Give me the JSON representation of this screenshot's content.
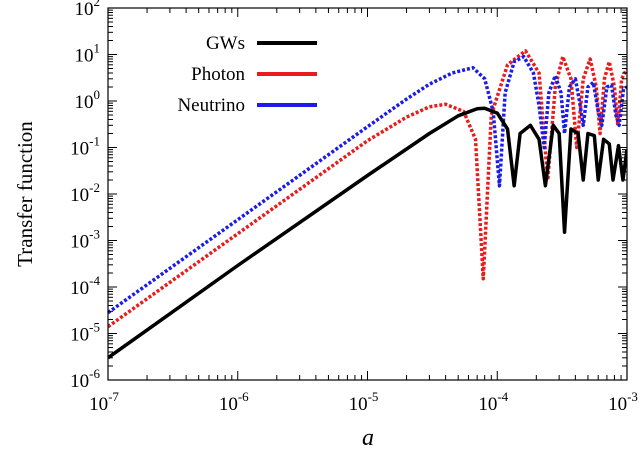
{
  "chart_data": {
    "type": "line",
    "xlabel": "a",
    "ylabel": "Transfer function",
    "x_scale": "log",
    "y_scale": "log",
    "xlim": [
      1e-07,
      0.001
    ],
    "ylim": [
      1e-06,
      100
    ],
    "x_ticks": [
      {
        "value": 1e-07,
        "base": "10",
        "exp": "-7"
      },
      {
        "value": 1e-06,
        "base": "10",
        "exp": "-6"
      },
      {
        "value": 1e-05,
        "base": "10",
        "exp": "-5"
      },
      {
        "value": 0.0001,
        "base": "10",
        "exp": "-4"
      },
      {
        "value": 0.001,
        "base": "10",
        "exp": "-3"
      }
    ],
    "y_ticks": [
      {
        "value": 1e-06,
        "base": "10",
        "exp": "-6"
      },
      {
        "value": 1e-05,
        "base": "10",
        "exp": "-5"
      },
      {
        "value": 0.0001,
        "base": "10",
        "exp": "-4"
      },
      {
        "value": 0.001,
        "base": "10",
        "exp": "-3"
      },
      {
        "value": 0.01,
        "base": "10",
        "exp": "-2"
      },
      {
        "value": 0.1,
        "base": "10",
        "exp": "-1"
      },
      {
        "value": 1,
        "base": "10",
        "exp": "0"
      },
      {
        "value": 10,
        "base": "10",
        "exp": "1"
      },
      {
        "value": 100,
        "base": "10",
        "exp": "2"
      }
    ],
    "grid": false,
    "legend_position": "top-left",
    "note": "solid segments = positive values, dotted segments = negative values (absolute value plotted)",
    "series": [
      {
        "name": "GWs",
        "color": "#000000",
        "points": [
          {
            "x": 1e-07,
            "y": 3e-06
          },
          {
            "x": 1e-06,
            "y": 0.00029
          },
          {
            "x": 1e-05,
            "y": 0.025
          },
          {
            "x": 3e-05,
            "y": 0.2
          },
          {
            "x": 5e-05,
            "y": 0.48
          },
          {
            "x": 7e-05,
            "y": 0.68
          },
          {
            "x": 8e-05,
            "y": 0.7
          },
          {
            "x": 0.0001,
            "y": 0.55
          },
          {
            "x": 0.00012,
            "y": 0.25
          },
          {
            "x": 0.000135,
            "y": 0.015
          },
          {
            "x": 0.00015,
            "y": 0.2
          },
          {
            "x": 0.00018,
            "y": 0.3
          },
          {
            "x": 0.00021,
            "y": 0.15
          },
          {
            "x": 0.000235,
            "y": 0.015
          },
          {
            "x": 0.00027,
            "y": 0.3
          },
          {
            "x": 0.0003,
            "y": 0.2
          },
          {
            "x": 0.00033,
            "y": 0.0015
          },
          {
            "x": 0.00037,
            "y": 0.25
          },
          {
            "x": 0.00042,
            "y": 0.2
          },
          {
            "x": 0.00046,
            "y": 0.02
          },
          {
            "x": 0.0005,
            "y": 0.2
          },
          {
            "x": 0.00056,
            "y": 0.18
          },
          {
            "x": 0.0006,
            "y": 0.02
          },
          {
            "x": 0.00066,
            "y": 0.15
          },
          {
            "x": 0.00073,
            "y": 0.12
          },
          {
            "x": 0.00078,
            "y": 0.02
          },
          {
            "x": 0.00086,
            "y": 0.11
          },
          {
            "x": 0.00093,
            "y": 0.02
          },
          {
            "x": 0.001,
            "y": 0.09
          }
        ]
      },
      {
        "name": "Photon",
        "color": "#e81c1c",
        "points": [
          {
            "x": 1e-07,
            "y": 1.4e-05
          },
          {
            "x": 1e-06,
            "y": 0.0014
          },
          {
            "x": 1e-05,
            "y": 0.14
          },
          {
            "x": 2e-05,
            "y": 0.45
          },
          {
            "x": 3e-05,
            "y": 0.75
          },
          {
            "x": 4e-05,
            "y": 0.85
          },
          {
            "x": 5.5e-05,
            "y": 0.6
          },
          {
            "x": 6.8e-05,
            "y": 0.15
          },
          {
            "x": 7.8e-05,
            "y": 0.00015
          },
          {
            "x": 9e-05,
            "y": 0.5
          },
          {
            "x": 0.00012,
            "y": 6
          },
          {
            "x": 0.000165,
            "y": 12
          },
          {
            "x": 0.00021,
            "y": 4
          },
          {
            "x": 0.000245,
            "y": 0.02
          },
          {
            "x": 0.00028,
            "y": 2
          },
          {
            "x": 0.00032,
            "y": 9
          },
          {
            "x": 0.00037,
            "y": 3
          },
          {
            "x": 0.00041,
            "y": 0.1
          },
          {
            "x": 0.00046,
            "y": 3
          },
          {
            "x": 0.00052,
            "y": 8
          },
          {
            "x": 0.00058,
            "y": 2
          },
          {
            "x": 0.00062,
            "y": 0.2
          },
          {
            "x": 0.00067,
            "y": 3
          },
          {
            "x": 0.00073,
            "y": 7
          },
          {
            "x": 0.0008,
            "y": 2
          },
          {
            "x": 0.00085,
            "y": 0.3
          },
          {
            "x": 0.00091,
            "y": 3
          },
          {
            "x": 0.001,
            "y": 5
          }
        ]
      },
      {
        "name": "Neutrino",
        "color": "#1c1ce8",
        "points": [
          {
            "x": 1e-07,
            "y": 2.8e-05
          },
          {
            "x": 1e-06,
            "y": 0.0028
          },
          {
            "x": 1e-05,
            "y": 0.28
          },
          {
            "x": 2e-05,
            "y": 1.1
          },
          {
            "x": 3e-05,
            "y": 2.3
          },
          {
            "x": 4.5e-05,
            "y": 4
          },
          {
            "x": 6.5e-05,
            "y": 5.2
          },
          {
            "x": 8e-05,
            "y": 3
          },
          {
            "x": 9.3e-05,
            "y": 0.6
          },
          {
            "x": 0.000104,
            "y": 0.015
          },
          {
            "x": 0.000115,
            "y": 1.5
          },
          {
            "x": 0.000135,
            "y": 7
          },
          {
            "x": 0.00016,
            "y": 9
          },
          {
            "x": 0.00019,
            "y": 4
          },
          {
            "x": 0.00021,
            "y": 0.8
          },
          {
            "x": 0.00023,
            "y": 0.1
          },
          {
            "x": 0.00025,
            "y": 1.5
          },
          {
            "x": 0.00028,
            "y": 3.5
          },
          {
            "x": 0.00031,
            "y": 1.5
          },
          {
            "x": 0.00033,
            "y": 0.2
          },
          {
            "x": 0.00036,
            "y": 2
          },
          {
            "x": 0.0004,
            "y": 3
          },
          {
            "x": 0.00043,
            "y": 1
          },
          {
            "x": 0.00046,
            "y": 0.3
          },
          {
            "x": 0.0005,
            "y": 2
          },
          {
            "x": 0.00055,
            "y": 2.5
          },
          {
            "x": 0.0006,
            "y": 0.6
          },
          {
            "x": 0.00064,
            "y": 0.3
          },
          {
            "x": 0.0007,
            "y": 2
          },
          {
            "x": 0.00076,
            "y": 2.2
          },
          {
            "x": 0.00082,
            "y": 0.5
          },
          {
            "x": 0.00087,
            "y": 0.3
          },
          {
            "x": 0.00094,
            "y": 1.8
          },
          {
            "x": 0.001,
            "y": 2
          }
        ]
      }
    ]
  }
}
